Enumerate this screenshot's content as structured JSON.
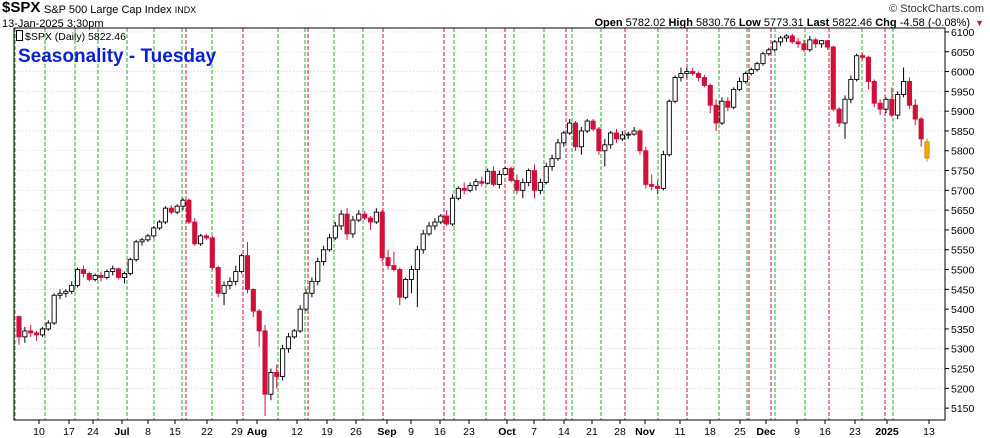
{
  "header": {
    "symbol": "$SPX",
    "name": "S&P 500 Large Cap Index",
    "exchange": "INDX",
    "datetime": "13-Jan-2025 3:30pm",
    "watermark": "© StockCharts.com",
    "legend": "$SPX (Daily) 5822.46",
    "annotation": "Seasonality - Tuesday"
  },
  "ohlc": {
    "open_label": "Open",
    "open": "5782.02",
    "high_label": "High",
    "high": "5830.76",
    "low_label": "Low",
    "low": "5773.31",
    "last_label": "Last",
    "last": "5822.46",
    "chg_label": "Chg",
    "chg": "-4.58 (-0.08%)",
    "chg_marker": "▼"
  },
  "colors": {
    "up_fill": "#ffffff",
    "up_edge": "#000000",
    "down": "#d0103a",
    "last_candle": "#f2a900",
    "tuesday_line": "#2ea82e",
    "month_line": "#d0103a",
    "annotation": "#0b1fd6"
  },
  "chart_data": {
    "type": "candlestick",
    "title": "$SPX (Daily) 5822.46",
    "ylim": [
      5120,
      6110
    ],
    "y_ticks": [
      5150,
      5200,
      5250,
      5300,
      5350,
      5400,
      5450,
      5500,
      5550,
      5600,
      5650,
      5700,
      5750,
      5800,
      5850,
      5900,
      5950,
      6000,
      6050,
      6100
    ],
    "grid": true,
    "x_labels": [
      "10",
      "17",
      "24",
      "Jul",
      "8",
      "15",
      "22",
      "29",
      "Aug",
      "12",
      "19",
      "26",
      "Sep",
      "9",
      "16",
      "23",
      "Oct",
      "7",
      "14",
      "21",
      "28",
      "Nov",
      "11",
      "18",
      "25",
      "Dec",
      "9",
      "16",
      "23",
      "2025",
      "13"
    ],
    "bold_labels": [
      "Jul",
      "Aug",
      "Sep",
      "Oct",
      "Nov",
      "Dec",
      "2025"
    ],
    "ohlc_points": [
      [
        5381,
        5384,
        5310,
        5330
      ],
      [
        5330,
        5355,
        5315,
        5345
      ],
      [
        5345,
        5360,
        5330,
        5340
      ],
      [
        5340,
        5345,
        5320,
        5335
      ],
      [
        5335,
        5355,
        5330,
        5350
      ],
      [
        5350,
        5372,
        5345,
        5365
      ],
      [
        5365,
        5440,
        5360,
        5435
      ],
      [
        5435,
        5450,
        5425,
        5440
      ],
      [
        5440,
        5450,
        5430,
        5445
      ],
      [
        5445,
        5470,
        5438,
        5460
      ],
      [
        5460,
        5505,
        5455,
        5500
      ],
      [
        5500,
        5510,
        5480,
        5490
      ],
      [
        5490,
        5495,
        5470,
        5475
      ],
      [
        5475,
        5490,
        5470,
        5485
      ],
      [
        5485,
        5495,
        5470,
        5480
      ],
      [
        5480,
        5500,
        5475,
        5495
      ],
      [
        5495,
        5510,
        5485,
        5502
      ],
      [
        5502,
        5505,
        5475,
        5480
      ],
      [
        5480,
        5495,
        5465,
        5490
      ],
      [
        5490,
        5530,
        5485,
        5525
      ],
      [
        5525,
        5575,
        5520,
        5570
      ],
      [
        5570,
        5580,
        5560,
        5575
      ],
      [
        5575,
        5590,
        5570,
        5585
      ],
      [
        5585,
        5610,
        5580,
        5605
      ],
      [
        5605,
        5625,
        5600,
        5620
      ],
      [
        5620,
        5660,
        5615,
        5655
      ],
      [
        5655,
        5662,
        5640,
        5645
      ],
      [
        5645,
        5665,
        5640,
        5660
      ],
      [
        5660,
        5680,
        5650,
        5675
      ],
      [
        5675,
        5680,
        5615,
        5620
      ],
      [
        5620,
        5630,
        5560,
        5565
      ],
      [
        5565,
        5590,
        5560,
        5585
      ],
      [
        5585,
        5590,
        5575,
        5580
      ],
      [
        5580,
        5585,
        5500,
        5505
      ],
      [
        5505,
        5510,
        5430,
        5440
      ],
      [
        5440,
        5470,
        5410,
        5460
      ],
      [
        5460,
        5480,
        5450,
        5470
      ],
      [
        5470,
        5510,
        5460,
        5495
      ],
      [
        5495,
        5540,
        5490,
        5535
      ],
      [
        5535,
        5570,
        5440,
        5450
      ],
      [
        5450,
        5452,
        5380,
        5395
      ],
      [
        5395,
        5400,
        5305,
        5345
      ],
      [
        5345,
        5360,
        5130,
        5185
      ],
      [
        5185,
        5250,
        5170,
        5240
      ],
      [
        5240,
        5260,
        5200,
        5230
      ],
      [
        5230,
        5310,
        5220,
        5300
      ],
      [
        5300,
        5340,
        5290,
        5330
      ],
      [
        5330,
        5350,
        5325,
        5345
      ],
      [
        5345,
        5410,
        5340,
        5400
      ],
      [
        5400,
        5450,
        5395,
        5440
      ],
      [
        5440,
        5480,
        5430,
        5470
      ],
      [
        5470,
        5530,
        5460,
        5520
      ],
      [
        5520,
        5560,
        5510,
        5550
      ],
      [
        5550,
        5590,
        5545,
        5580
      ],
      [
        5580,
        5620,
        5575,
        5610
      ],
      [
        5610,
        5650,
        5600,
        5640
      ],
      [
        5640,
        5655,
        5575,
        5590
      ],
      [
        5590,
        5635,
        5580,
        5625
      ],
      [
        5625,
        5650,
        5620,
        5640
      ],
      [
        5640,
        5648,
        5625,
        5630
      ],
      [
        5630,
        5635,
        5600,
        5620
      ],
      [
        5620,
        5655,
        5615,
        5645
      ],
      [
        5645,
        5650,
        5520,
        5530
      ],
      [
        5530,
        5550,
        5500,
        5510
      ],
      [
        5510,
        5545,
        5495,
        5500
      ],
      [
        5500,
        5505,
        5410,
        5430
      ],
      [
        5430,
        5480,
        5425,
        5475
      ],
      [
        5475,
        5510,
        5440,
        5500
      ],
      [
        5500,
        5560,
        5405,
        5550
      ],
      [
        5550,
        5600,
        5540,
        5590
      ],
      [
        5590,
        5620,
        5585,
        5610
      ],
      [
        5610,
        5630,
        5600,
        5620
      ],
      [
        5620,
        5640,
        5615,
        5635
      ],
      [
        5635,
        5650,
        5610,
        5615
      ],
      [
        5615,
        5690,
        5610,
        5680
      ],
      [
        5680,
        5710,
        5675,
        5705
      ],
      [
        5705,
        5720,
        5690,
        5700
      ],
      [
        5700,
        5720,
        5695,
        5712
      ],
      [
        5712,
        5730,
        5700,
        5722
      ],
      [
        5722,
        5735,
        5710,
        5718
      ],
      [
        5718,
        5755,
        5715,
        5748
      ],
      [
        5748,
        5760,
        5710,
        5715
      ],
      [
        5715,
        5750,
        5705,
        5740
      ],
      [
        5740,
        5760,
        5740,
        5755
      ],
      [
        5755,
        5760,
        5720,
        5725
      ],
      [
        5725,
        5740,
        5690,
        5700
      ],
      [
        5700,
        5730,
        5680,
        5720
      ],
      [
        5720,
        5755,
        5710,
        5750
      ],
      [
        5750,
        5765,
        5680,
        5700
      ],
      [
        5700,
        5730,
        5690,
        5720
      ],
      [
        5720,
        5770,
        5715,
        5760
      ],
      [
        5760,
        5790,
        5750,
        5780
      ],
      [
        5780,
        5830,
        5775,
        5820
      ],
      [
        5820,
        5850,
        5810,
        5845
      ],
      [
        5845,
        5880,
        5840,
        5870
      ],
      [
        5870,
        5875,
        5800,
        5810
      ],
      [
        5810,
        5860,
        5790,
        5850
      ],
      [
        5850,
        5880,
        5845,
        5875
      ],
      [
        5875,
        5880,
        5850,
        5855
      ],
      [
        5855,
        5860,
        5790,
        5800
      ],
      [
        5800,
        5830,
        5760,
        5815
      ],
      [
        5815,
        5850,
        5805,
        5845
      ],
      [
        5845,
        5855,
        5820,
        5830
      ],
      [
        5830,
        5850,
        5825,
        5840
      ],
      [
        5840,
        5848,
        5830,
        5842
      ],
      [
        5842,
        5860,
        5838,
        5850
      ],
      [
        5850,
        5855,
        5790,
        5800
      ],
      [
        5800,
        5810,
        5705,
        5715
      ],
      [
        5715,
        5740,
        5700,
        5710
      ],
      [
        5710,
        5725,
        5690,
        5705
      ],
      [
        5705,
        5800,
        5700,
        5790
      ],
      [
        5790,
        5930,
        5785,
        5925
      ],
      [
        5925,
        5990,
        5920,
        5985
      ],
      [
        5985,
        6010,
        5975,
        5995
      ],
      [
        5995,
        6010,
        5985,
        6000
      ],
      [
        6000,
        6010,
        5990,
        5995
      ],
      [
        5995,
        6000,
        5975,
        5985
      ],
      [
        5985,
        5992,
        5960,
        5965
      ],
      [
        5965,
        5970,
        5895,
        5915
      ],
      [
        5915,
        5930,
        5850,
        5870
      ],
      [
        5870,
        5935,
        5865,
        5925
      ],
      [
        5925,
        5935,
        5900,
        5910
      ],
      [
        5910,
        5960,
        5905,
        5955
      ],
      [
        5955,
        5985,
        5950,
        5975
      ],
      [
        5975,
        6000,
        5970,
        5995
      ],
      [
        5995,
        6010,
        5990,
        6005
      ],
      [
        6005,
        6025,
        6000,
        6020
      ],
      [
        6020,
        6050,
        6015,
        6045
      ],
      [
        6045,
        6060,
        6040,
        6055
      ],
      [
        6055,
        6080,
        6050,
        6075
      ],
      [
        6075,
        6090,
        6065,
        6085
      ],
      [
        6085,
        6095,
        6075,
        6090
      ],
      [
        6090,
        6095,
        6070,
        6075
      ],
      [
        6075,
        6085,
        6060,
        6070
      ],
      [
        6070,
        6080,
        6050,
        6055
      ],
      [
        6055,
        6090,
        6050,
        6080
      ],
      [
        6080,
        6085,
        6060,
        6070
      ],
      [
        6070,
        6080,
        6060,
        6078
      ],
      [
        6078,
        6080,
        6055,
        6062
      ],
      [
        6062,
        6065,
        5900,
        5905
      ],
      [
        5905,
        5910,
        5860,
        5870
      ],
      [
        5870,
        5940,
        5830,
        5930
      ],
      [
        5930,
        5990,
        5920,
        5980
      ],
      [
        5980,
        6045,
        5975,
        6040
      ],
      [
        6040,
        6045,
        6030,
        6036
      ],
      [
        6036,
        6040,
        5955,
        5975
      ],
      [
        5975,
        5980,
        5910,
        5920
      ],
      [
        5920,
        5930,
        5890,
        5905
      ],
      [
        5905,
        5935,
        5895,
        5930
      ],
      [
        5930,
        5960,
        5885,
        5890
      ],
      [
        5890,
        5950,
        5880,
        5942
      ],
      [
        5942,
        6010,
        5935,
        5975
      ],
      [
        5975,
        5985,
        5905,
        5915
      ],
      [
        5915,
        5930,
        5865,
        5880
      ],
      [
        5880,
        5885,
        5810,
        5830
      ],
      [
        5782,
        5831,
        5773,
        5822
      ]
    ],
    "tuesday_gridline_x_labels": "weekly Tuesday sessions",
    "month_gridline_labels": "month starts"
  }
}
